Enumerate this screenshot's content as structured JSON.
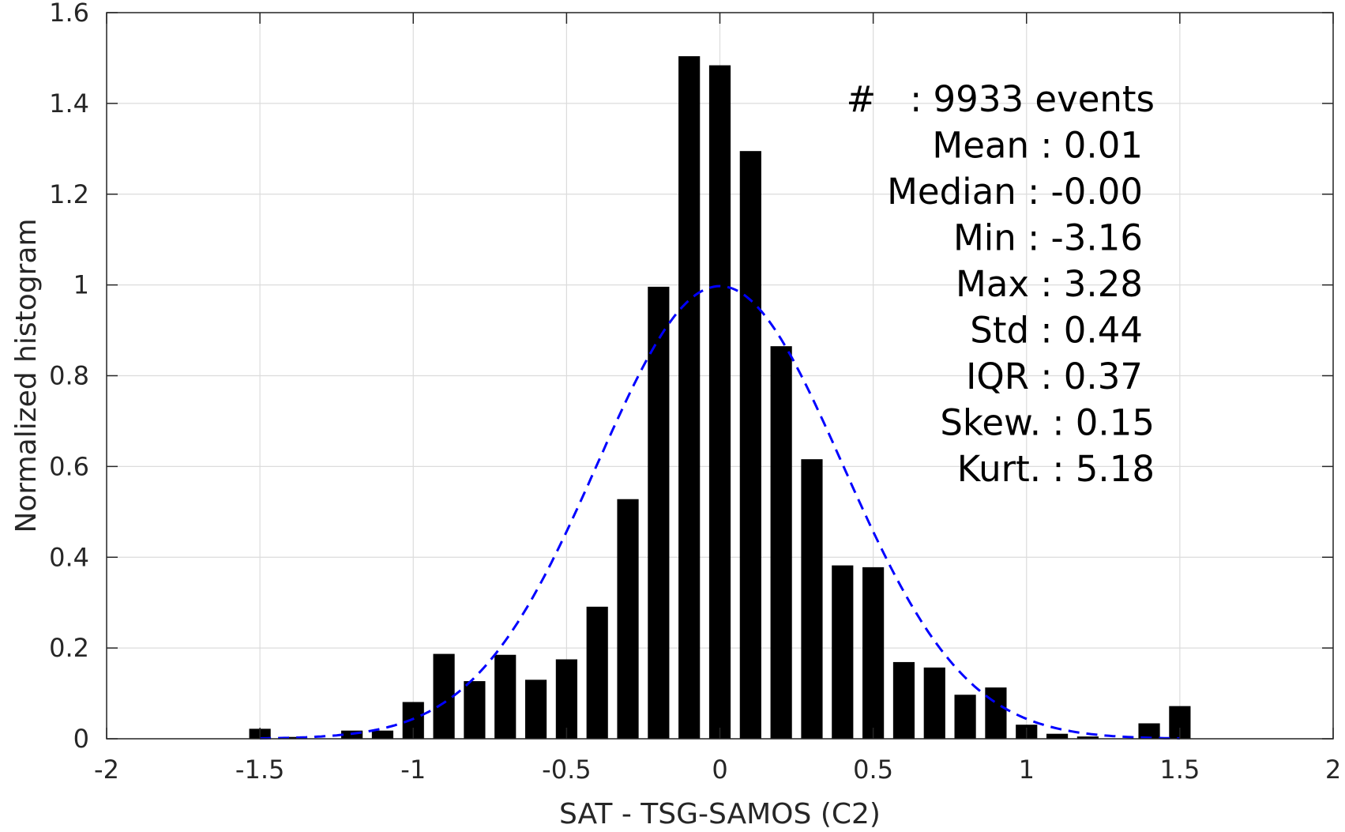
{
  "chart_data": {
    "type": "bar",
    "xlabel": "SAT - TSG-SAMOS (C2)",
    "ylabel": "Normalized histogram",
    "xlim": [
      -2,
      2
    ],
    "ylim": [
      0,
      1.6
    ],
    "grid": true,
    "xticks": [
      "-2",
      "-1.5",
      "-1",
      "-0.5",
      "0",
      "0.5",
      "1",
      "1.5",
      "2"
    ],
    "yticks": [
      "0",
      "0.2",
      "0.4",
      "0.6",
      "0.8",
      "1",
      "1.2",
      "1.4",
      "1.6"
    ],
    "bar_width": 0.07,
    "series": [
      {
        "type": "bar",
        "color": "#000000",
        "x": [
          -1.5,
          -1.4,
          -1.3,
          -1.2,
          -1.1,
          -1.0,
          -0.9,
          -0.8,
          -0.7,
          -0.6,
          -0.5,
          -0.4,
          -0.3,
          -0.2,
          -0.1,
          0.0,
          0.1,
          0.2,
          0.3,
          0.4,
          0.5,
          0.6,
          0.7,
          0.8,
          0.9,
          1.0,
          1.1,
          1.2,
          1.3,
          1.4,
          1.5
        ],
        "values": [
          0.022,
          0.004,
          0.0,
          0.018,
          0.018,
          0.081,
          0.187,
          0.127,
          0.185,
          0.13,
          0.175,
          0.291,
          0.528,
          0.996,
          1.504,
          1.484,
          1.295,
          0.865,
          0.616,
          0.382,
          0.378,
          0.169,
          0.157,
          0.097,
          0.113,
          0.031,
          0.011,
          0.005,
          0.0,
          0.034,
          0.072
        ]
      },
      {
        "type": "line",
        "style": "dashed",
        "color": "#0000ff",
        "fit": "normal",
        "mean": 0.0,
        "std": 0.4,
        "x_range": [
          -1.5,
          1.5
        ]
      }
    ],
    "annotations": [
      "#   : 9933 events",
      "Mean : 0.01",
      "Median : -0.00",
      "Min : -3.16",
      "Max : 3.28",
      "Std : 0.44",
      "IQR : 0.37",
      "Skew. : 0.15",
      "Kurt. : 5.18"
    ]
  }
}
